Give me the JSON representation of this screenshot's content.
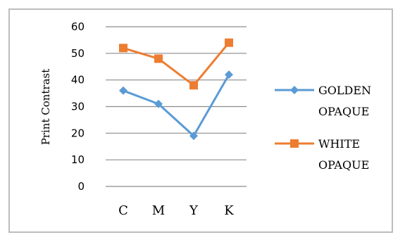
{
  "chart_data": {
    "type": "line",
    "categories": [
      "C",
      "M",
      "Y",
      "K"
    ],
    "ylabel": "Print Contrast",
    "ylim": [
      0,
      60
    ],
    "yticks": [
      0,
      10,
      20,
      30,
      40,
      50,
      60
    ],
    "grid": "horizontal",
    "legend": "right",
    "series": [
      {
        "name_lines": [
          "GOLDEN",
          "OPAQUE"
        ],
        "values": [
          36,
          31,
          19,
          42
        ],
        "color": "#5b9bd5",
        "marker": "diamond"
      },
      {
        "name_lines": [
          "WHITE",
          "OPAQUE"
        ],
        "values": [
          52,
          48,
          38,
          54
        ],
        "color": "#ed7d31",
        "marker": "square"
      }
    ]
  }
}
